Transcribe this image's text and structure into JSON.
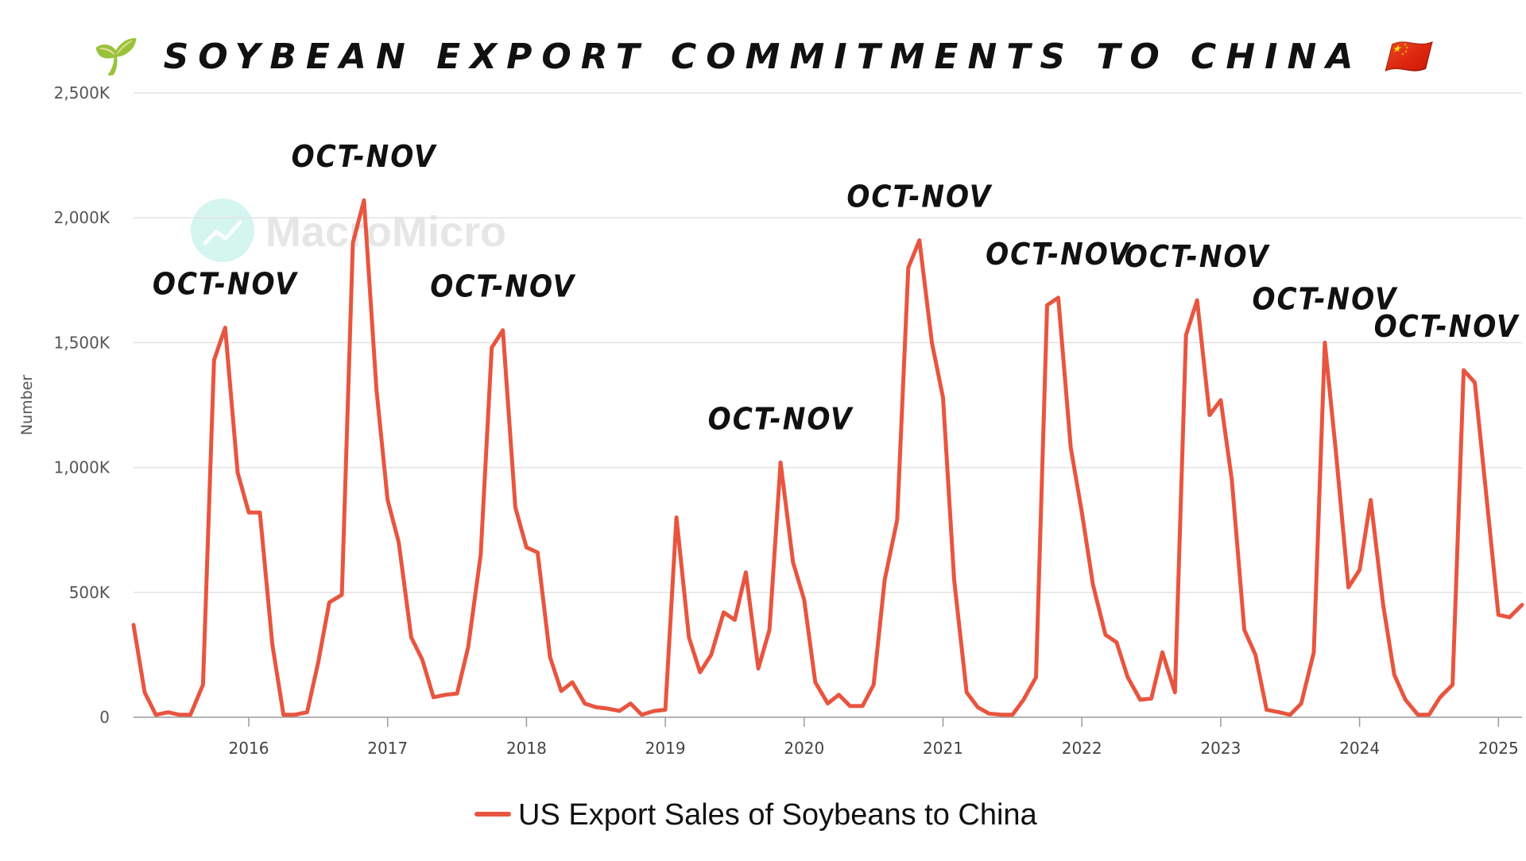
{
  "chart_data": {
    "type": "line",
    "title": "🌱 SOYBEAN EXPORT COMMITMENTS TO CHINA 🇨🇳",
    "title_icon_left": "seedling-icon",
    "title_icon_right": "china-flag-icon",
    "watermark": "MacroMicro",
    "ylabel": "Number",
    "xlabel": "",
    "ylim": [
      0,
      2500
    ],
    "y_ticks": [
      0,
      500,
      1000,
      1500,
      2000,
      2500
    ],
    "y_tick_labels": [
      "0",
      "500K",
      "1,000K",
      "1,500K",
      "2,000K",
      "2,500K"
    ],
    "x_ticks": [
      2016,
      2017,
      2018,
      2019,
      2020,
      2021,
      2022,
      2023,
      2024,
      2025
    ],
    "x_tick_labels": [
      "2016",
      "2017",
      "2018",
      "2019",
      "2020",
      "2021",
      "2022",
      "2023",
      "2024",
      "2025"
    ],
    "xlim": [
      2015.17,
      2025.17
    ],
    "grid": true,
    "legend_position": "bottom-center",
    "series": [
      {
        "name": "US Export Sales of Soybeans to China",
        "color": "#e8553f",
        "x": [
          2015.17,
          2015.25,
          2015.33,
          2015.42,
          2015.5,
          2015.58,
          2015.67,
          2015.75,
          2015.83,
          2015.92,
          2016.0,
          2016.08,
          2016.17,
          2016.25,
          2016.33,
          2016.42,
          2016.5,
          2016.58,
          2016.67,
          2016.75,
          2016.83,
          2016.92,
          2017.0,
          2017.08,
          2017.17,
          2017.25,
          2017.33,
          2017.42,
          2017.5,
          2017.58,
          2017.67,
          2017.75,
          2017.83,
          2017.92,
          2018.0,
          2018.08,
          2018.17,
          2018.25,
          2018.33,
          2018.42,
          2018.5,
          2018.58,
          2018.67,
          2018.75,
          2018.83,
          2018.92,
          2019.0,
          2019.08,
          2019.17,
          2019.25,
          2019.33,
          2019.42,
          2019.5,
          2019.58,
          2019.67,
          2019.75,
          2019.83,
          2019.92,
          2020.0,
          2020.08,
          2020.17,
          2020.25,
          2020.33,
          2020.42,
          2020.5,
          2020.58,
          2020.67,
          2020.75,
          2020.83,
          2020.92,
          2021.0,
          2021.08,
          2021.17,
          2021.25,
          2021.33,
          2021.42,
          2021.5,
          2021.58,
          2021.67,
          2021.75,
          2021.83,
          2021.92,
          2022.0,
          2022.08,
          2022.17,
          2022.25,
          2022.33,
          2022.42,
          2022.5,
          2022.58,
          2022.67,
          2022.75,
          2022.83,
          2022.92,
          2023.0,
          2023.08,
          2023.17,
          2023.25,
          2023.33,
          2023.42,
          2023.5,
          2023.58,
          2023.67,
          2023.75,
          2023.83,
          2023.92,
          2024.0,
          2024.08,
          2024.17,
          2024.25,
          2024.33,
          2024.42,
          2024.5,
          2024.58,
          2024.67,
          2024.75,
          2024.83,
          2024.92,
          2025.0,
          2025.08,
          2025.17
        ],
        "y": [
          370,
          100,
          10,
          20,
          10,
          10,
          130,
          1430,
          1560,
          980,
          820,
          820,
          290,
          10,
          10,
          20,
          220,
          460,
          490,
          1900,
          2070,
          1310,
          870,
          700,
          320,
          230,
          80,
          90,
          95,
          280,
          650,
          1480,
          1550,
          840,
          680,
          660,
          240,
          105,
          140,
          55,
          40,
          35,
          25,
          55,
          10,
          25,
          30,
          800,
          320,
          180,
          250,
          420,
          390,
          580,
          195,
          350,
          1020,
          620,
          470,
          140,
          55,
          90,
          45,
          45,
          130,
          550,
          790,
          1800,
          1910,
          1500,
          1280,
          550,
          100,
          40,
          15,
          10,
          10,
          70,
          160,
          1650,
          1680,
          1080,
          820,
          530,
          330,
          300,
          160,
          70,
          75,
          260,
          100,
          1530,
          1670,
          1210,
          1270,
          950,
          350,
          250,
          30,
          20,
          10,
          55,
          260,
          1500,
          1060,
          520,
          590,
          870,
          450,
          170,
          70,
          10,
          10,
          80,
          130,
          1390,
          1340,
          850,
          410,
          400,
          450
        ]
      }
    ],
    "annotations": [
      {
        "text": "OCT-NOV",
        "x": 2015.83,
        "y": 1560
      },
      {
        "text": "OCT-NOV",
        "x": 2016.83,
        "y": 2070
      },
      {
        "text": "OCT-NOV",
        "x": 2017.83,
        "y": 1550
      },
      {
        "text": "OCT-NOV",
        "x": 2019.83,
        "y": 1020
      },
      {
        "text": "OCT-NOV",
        "x": 2020.83,
        "y": 1910
      },
      {
        "text": "OCT-NOV",
        "x": 2021.83,
        "y": 1680
      },
      {
        "text": "OCT-NOV",
        "x": 2022.83,
        "y": 1670
      },
      {
        "text": "OCT-NOV",
        "x": 2023.75,
        "y": 1500
      },
      {
        "text": "OCT-NOV",
        "x": 2024.75,
        "y": 1390
      }
    ]
  }
}
